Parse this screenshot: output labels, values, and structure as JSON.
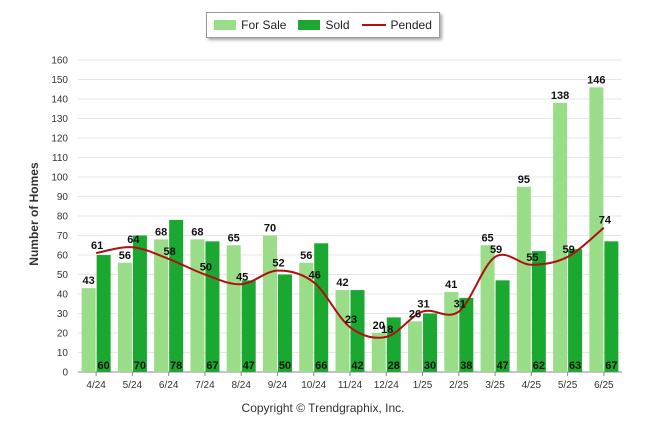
{
  "chart_data": {
    "type": "bar",
    "title": "",
    "xlabel": "",
    "ylabel": "Number of Homes",
    "ylim": [
      0,
      160
    ],
    "yticks": [
      0,
      10,
      20,
      30,
      40,
      50,
      60,
      70,
      80,
      90,
      100,
      110,
      120,
      130,
      140,
      150,
      160
    ],
    "grid": true,
    "legend_position": "top-center",
    "categories": [
      "4/24",
      "5/24",
      "6/24",
      "7/24",
      "8/24",
      "9/24",
      "10/24",
      "11/24",
      "12/24",
      "1/25",
      "2/25",
      "3/25",
      "4/25",
      "5/25",
      "6/25"
    ],
    "series": [
      {
        "name": "For Sale",
        "type": "bar",
        "color": "#99dd88",
        "values": [
          43,
          56,
          68,
          68,
          65,
          70,
          56,
          42,
          20,
          26,
          41,
          65,
          95,
          138,
          146
        ]
      },
      {
        "name": "Sold",
        "type": "bar",
        "color": "#1aa830",
        "values": [
          60,
          70,
          78,
          67,
          47,
          50,
          66,
          42,
          28,
          30,
          38,
          47,
          62,
          63,
          67
        ]
      },
      {
        "name": "Pended",
        "type": "line",
        "color": "#b01010",
        "values": [
          61,
          64,
          58,
          50,
          45,
          52,
          46,
          23,
          18,
          31,
          31,
          59,
          55,
          59,
          74
        ]
      }
    ]
  },
  "footer": {
    "copyright": "Copyright © Trendgraphix, Inc."
  }
}
